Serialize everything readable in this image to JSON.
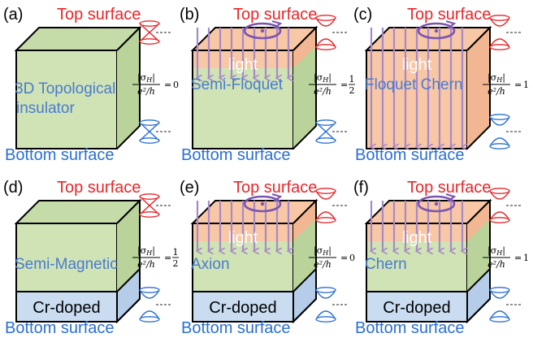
{
  "colors": {
    "green": "#cfe3b5",
    "green_top": "#c5dba8",
    "green_side": "#b9d39a",
    "salmon": "#f8c7a6",
    "salmon_side": "#f2b792",
    "blue": "#c9dcf0",
    "blue_side": "#b5cde8",
    "top_label": "#e8262a",
    "bottom_label": "#2a6fd6",
    "phase_label": "#4a7bd0",
    "arrow": "#a889c8",
    "circle": "#7b55b0",
    "cone_red": "#e8262a",
    "cone_blue": "#2a6fd6"
  },
  "common": {
    "top_surface": "Top surface",
    "bottom_surface": "Bottom surface",
    "light": "light",
    "cr_doped": "Cr-doped",
    "formula_num": "|σ",
    "formula_sub": "H",
    "formula_den": "e²/h",
    "equals": "="
  },
  "panels": [
    {
      "label": "(a)",
      "phase_line1": "3D Topological",
      "phase_line2": "insulator",
      "hall": "0",
      "light": false,
      "cr": false,
      "top_gap": false,
      "bot_gap": false
    },
    {
      "label": "(b)",
      "phase_line1": "Semi-Floquet",
      "phase_line2": "",
      "hall": "1/2",
      "light": true,
      "cr": false,
      "top_gap": true,
      "bot_gap": false
    },
    {
      "label": "(c)",
      "phase_line1": "Floquet Chern",
      "phase_line2": "",
      "hall": "1",
      "light": true,
      "cr": false,
      "top_gap": true,
      "bot_gap": true
    },
    {
      "label": "(d)",
      "phase_line1": "Semi-Magnetic",
      "phase_line2": "",
      "hall": "1/2",
      "light": false,
      "cr": true,
      "top_gap": false,
      "bot_gap": true
    },
    {
      "label": "(e)",
      "phase_line1": "Axion",
      "phase_line2": "",
      "hall": "0",
      "light": true,
      "cr": true,
      "top_gap": true,
      "bot_gap": true
    },
    {
      "label": "(f)",
      "phase_line1": "Chern",
      "phase_line2": "",
      "hall": "1",
      "light": true,
      "cr": true,
      "top_gap": true,
      "bot_gap": true
    }
  ]
}
